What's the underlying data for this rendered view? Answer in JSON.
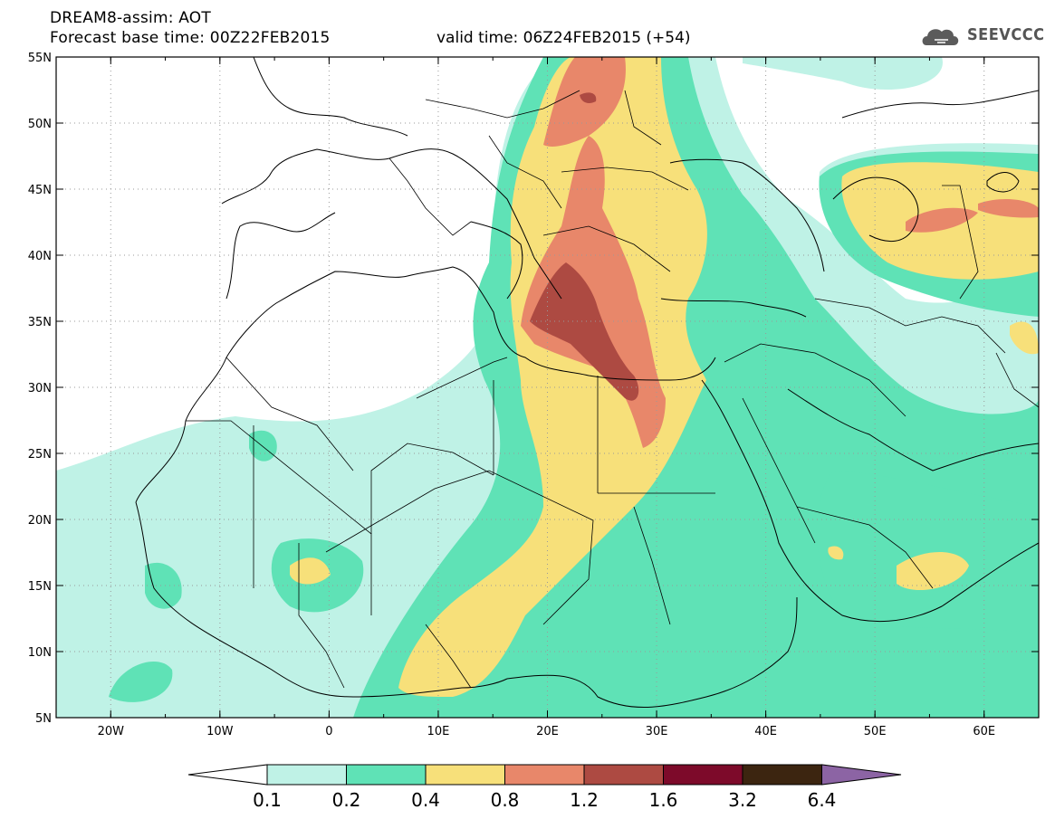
{
  "header": {
    "model_line": "DREAM8-assim: AOT",
    "forecast_base": "Forecast base time: 00Z22FEB2015",
    "valid_time": "valid time: 06Z24FEB2015 (+54)"
  },
  "logo": {
    "text": "SEEVCCC",
    "icon": "cloud-logo-icon"
  },
  "map": {
    "lon_range": [
      -25,
      65
    ],
    "lat_range": [
      5,
      55
    ],
    "lon_ticks": [
      {
        "value": -20,
        "label": "20W"
      },
      {
        "value": -10,
        "label": "10W"
      },
      {
        "value": 0,
        "label": "0"
      },
      {
        "value": 10,
        "label": "10E"
      },
      {
        "value": 20,
        "label": "20E"
      },
      {
        "value": 30,
        "label": "30E"
      },
      {
        "value": 40,
        "label": "40E"
      },
      {
        "value": 50,
        "label": "50E"
      },
      {
        "value": 60,
        "label": "60E"
      }
    ],
    "lat_ticks": [
      {
        "value": 55,
        "label": "55N"
      },
      {
        "value": 50,
        "label": "50N"
      },
      {
        "value": 45,
        "label": "45N"
      },
      {
        "value": 40,
        "label": "40N"
      },
      {
        "value": 35,
        "label": "35N"
      },
      {
        "value": 30,
        "label": "30N"
      },
      {
        "value": 25,
        "label": "25N"
      },
      {
        "value": 20,
        "label": "20N"
      },
      {
        "value": 15,
        "label": "15N"
      },
      {
        "value": 10,
        "label": "10N"
      },
      {
        "value": 5,
        "label": "5N"
      }
    ]
  },
  "colorbar": {
    "levels": [
      "0.1",
      "0.2",
      "0.4",
      "0.8",
      "1.2",
      "1.6",
      "3.2",
      "6.4"
    ],
    "colors": [
      "#ffffff",
      "#bff2e6",
      "#5fe2b6",
      "#f7e07a",
      "#e8876a",
      "#ad4a42",
      "#7d0a2a",
      "#3c2510",
      "#8c64a4"
    ]
  }
}
